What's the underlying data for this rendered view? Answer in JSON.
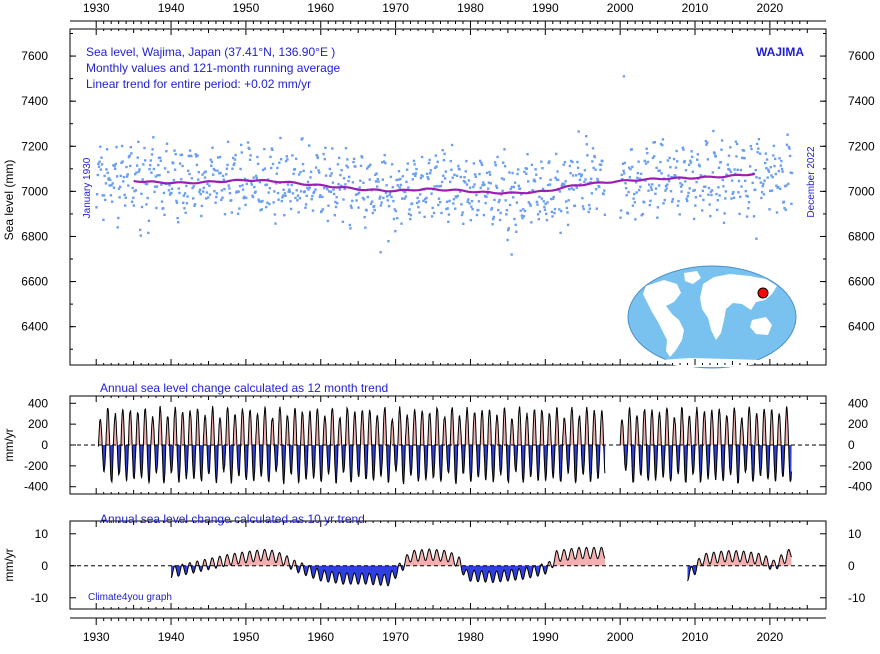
{
  "badge": "WAJIMA",
  "credit": "Climate4you graph",
  "colors": {
    "scatter": "#6b9ef0",
    "running_mean": "#9a1fb0",
    "text": "#1f1fd0",
    "positive_fill": "#f4b0b0",
    "negative_fill": "#2f3fe0",
    "map_ocean": "#79c1ee",
    "map_land": "#ffffff",
    "marker": "#ff0000"
  },
  "map": {
    "marker_label": ""
  },
  "chart_data": [
    {
      "type": "scatter",
      "title_lines": [
        "Sea level, Wajima, Japan (37.41°N, 136.90°E )",
        "Monthly values and 121-month running average",
        "Linear trend for entire period: +0.02 mm/yr"
      ],
      "ylabel": "Sea level (mm)",
      "left_annotation": "January 1930",
      "right_annotation": "December 2022",
      "xlim": [
        1926.5,
        2027.5
      ],
      "ylim": [
        6230,
        7720
      ],
      "x_ticks": [
        1930,
        1940,
        1950,
        1960,
        1970,
        1980,
        1990,
        2000,
        2010,
        2020
      ],
      "y_ticks": [
        6400,
        6600,
        6800,
        7000,
        7200,
        7400,
        7600
      ],
      "monthly_mean": [
        7050,
        7020
      ],
      "monthly_spread": 130,
      "monthly_gaps": [
        [
          1998.0,
          2000.0
        ]
      ],
      "running_average": {
        "x": [
          1935,
          1938,
          1942,
          1946,
          1950,
          1954,
          1958,
          1962,
          1966,
          1970,
          1974,
          1978,
          1982,
          1986,
          1990,
          1994,
          1998,
          2002,
          2006,
          2010,
          2014,
          2018
        ],
        "y": [
          7047,
          7040,
          7037,
          7043,
          7050,
          7045,
          7032,
          7020,
          7007,
          7002,
          7010,
          7005,
          6995,
          6992,
          7000,
          7027,
          7040,
          7050,
          7057,
          7060,
          7066,
          7078
        ]
      },
      "outliers": [
        {
          "x": 2000.5,
          "y": 7510
        },
        {
          "x": 1968.0,
          "y": 6730
        },
        {
          "x": 1985.5,
          "y": 6720
        },
        {
          "x": 2018.2,
          "y": 6790
        }
      ]
    },
    {
      "type": "area",
      "title": "Annual sea level change calculated as 12 month trend",
      "ylabel": "mm/yr",
      "xlim": [
        1926.5,
        2027.5
      ],
      "ylim": [
        -470,
        470
      ],
      "y_ticks": [
        -400,
        -200,
        0,
        200,
        400
      ],
      "amplitude": 330,
      "cycle_years": 1.0,
      "segments": [
        [
          1930.3,
          1998.0
        ],
        [
          2000.0,
          2022.9
        ]
      ]
    },
    {
      "type": "area",
      "title": "Annual sea level change calculated as 10 yr trend",
      "ylabel": "mm/yr",
      "xlim": [
        1926.5,
        2027.5
      ],
      "ylim": [
        -13.5,
        14
      ],
      "y_ticks": [
        -10,
        0,
        10
      ],
      "x_ticks": [
        1930,
        1940,
        1950,
        1960,
        1970,
        1980,
        1990,
        2000,
        2010,
        2020
      ],
      "baseline": {
        "x": [
          1940.0,
          1944.0,
          1948.0,
          1951.0,
          1953.0,
          1955.0,
          1956.5,
          1960.0,
          1963.0,
          1966.0,
          1969.0,
          1970.5,
          1972.0,
          1974.5,
          1977.0,
          1978.5,
          1979.5,
          1983.0,
          1987.0,
          1989.0,
          1990.5,
          1991.5,
          1994.5,
          1998.0,
          2009.0,
          2010.0,
          2011.0,
          2014.0,
          2016.0,
          2019.0,
          2020.5,
          2022.9
        ],
        "y": [
          -2,
          0,
          2,
          3,
          3.5,
          2,
          0,
          -3,
          -4,
          -4,
          -4.5,
          -1,
          3,
          3.5,
          3,
          1,
          -3,
          -3.5,
          -2.5,
          -1.5,
          -0.5,
          3,
          4,
          4,
          -3,
          -1,
          2,
          3,
          3,
          2,
          0,
          4
        ]
      },
      "amplitude": 2.5,
      "cycle_years": 1.0,
      "segments": [
        [
          1940.0,
          1998.0
        ],
        [
          2009.0,
          2022.9
        ]
      ]
    }
  ]
}
